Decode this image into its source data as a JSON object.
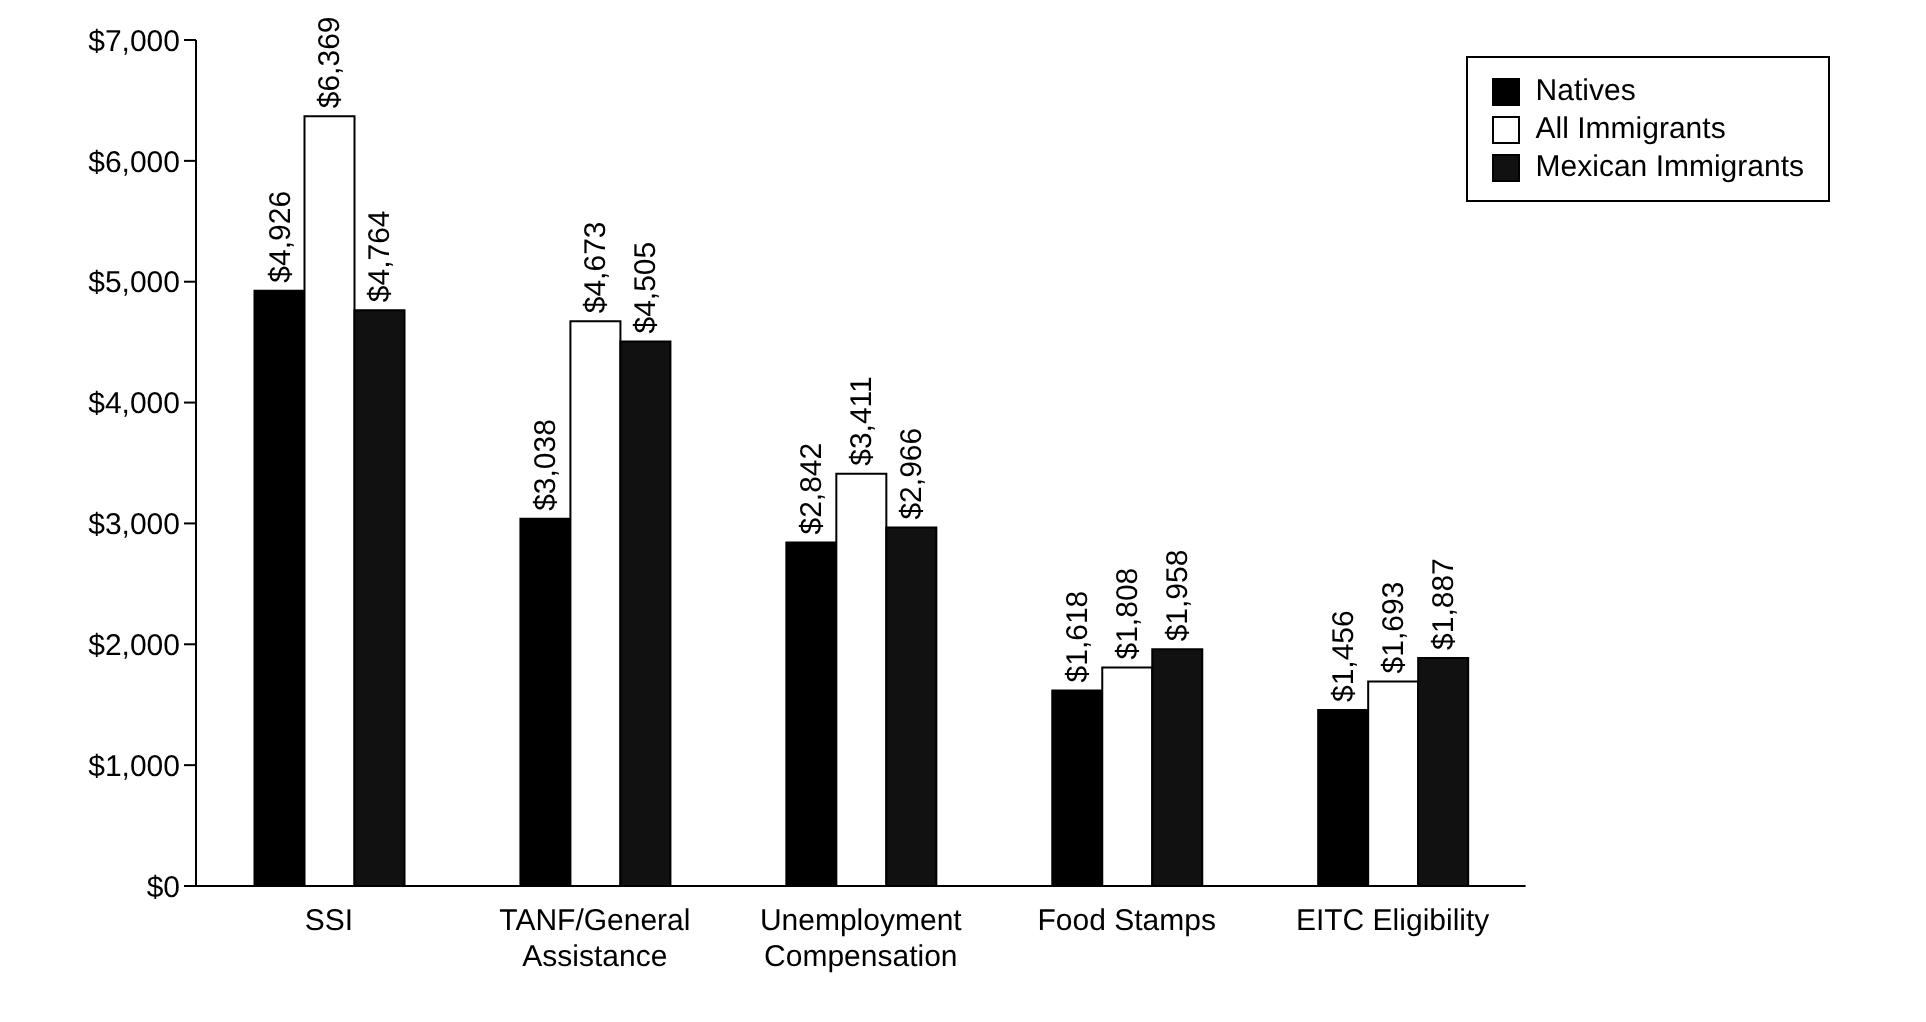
{
  "chart_data": {
    "type": "bar",
    "categories": [
      "SSI",
      "TANF/General Assistance",
      "Unemployment Compensation",
      "Food Stamps",
      "EITC Eligibility"
    ],
    "series": [
      {
        "name": "Natives",
        "color": "#000000",
        "values": [
          4926,
          3038,
          2842,
          1618,
          1456
        ],
        "value_labels": [
          "$4,926",
          "$3,038",
          "$2,842",
          "$1,618",
          "$1,456"
        ]
      },
      {
        "name": "All Immigrants",
        "color": "#ffffff",
        "values": [
          6369,
          4673,
          3411,
          1808,
          1693
        ],
        "value_labels": [
          "$6,369",
          "$4,673",
          "$3,411",
          "$1,808",
          "$1,693"
        ]
      },
      {
        "name": "Mexican Immigrants",
        "color": "#111111",
        "values": [
          4764,
          4505,
          2966,
          1958,
          1887
        ],
        "value_labels": [
          "$4,764",
          "$4,505",
          "$2,966",
          "$1,958",
          "$1,887"
        ]
      }
    ],
    "ylim": [
      0,
      7000
    ],
    "yticks": [
      {
        "value": 0,
        "label": "$0"
      },
      {
        "value": 1000,
        "label": "$1,000"
      },
      {
        "value": 2000,
        "label": "$2,000"
      },
      {
        "value": 3000,
        "label": "$3,000"
      },
      {
        "value": 4000,
        "label": "$4,000"
      },
      {
        "value": 5000,
        "label": "$5,000"
      },
      {
        "value": 6000,
        "label": "$6,000"
      },
      {
        "value": 7000,
        "label": "$7,000"
      }
    ],
    "grid": false,
    "legend": "top right"
  }
}
